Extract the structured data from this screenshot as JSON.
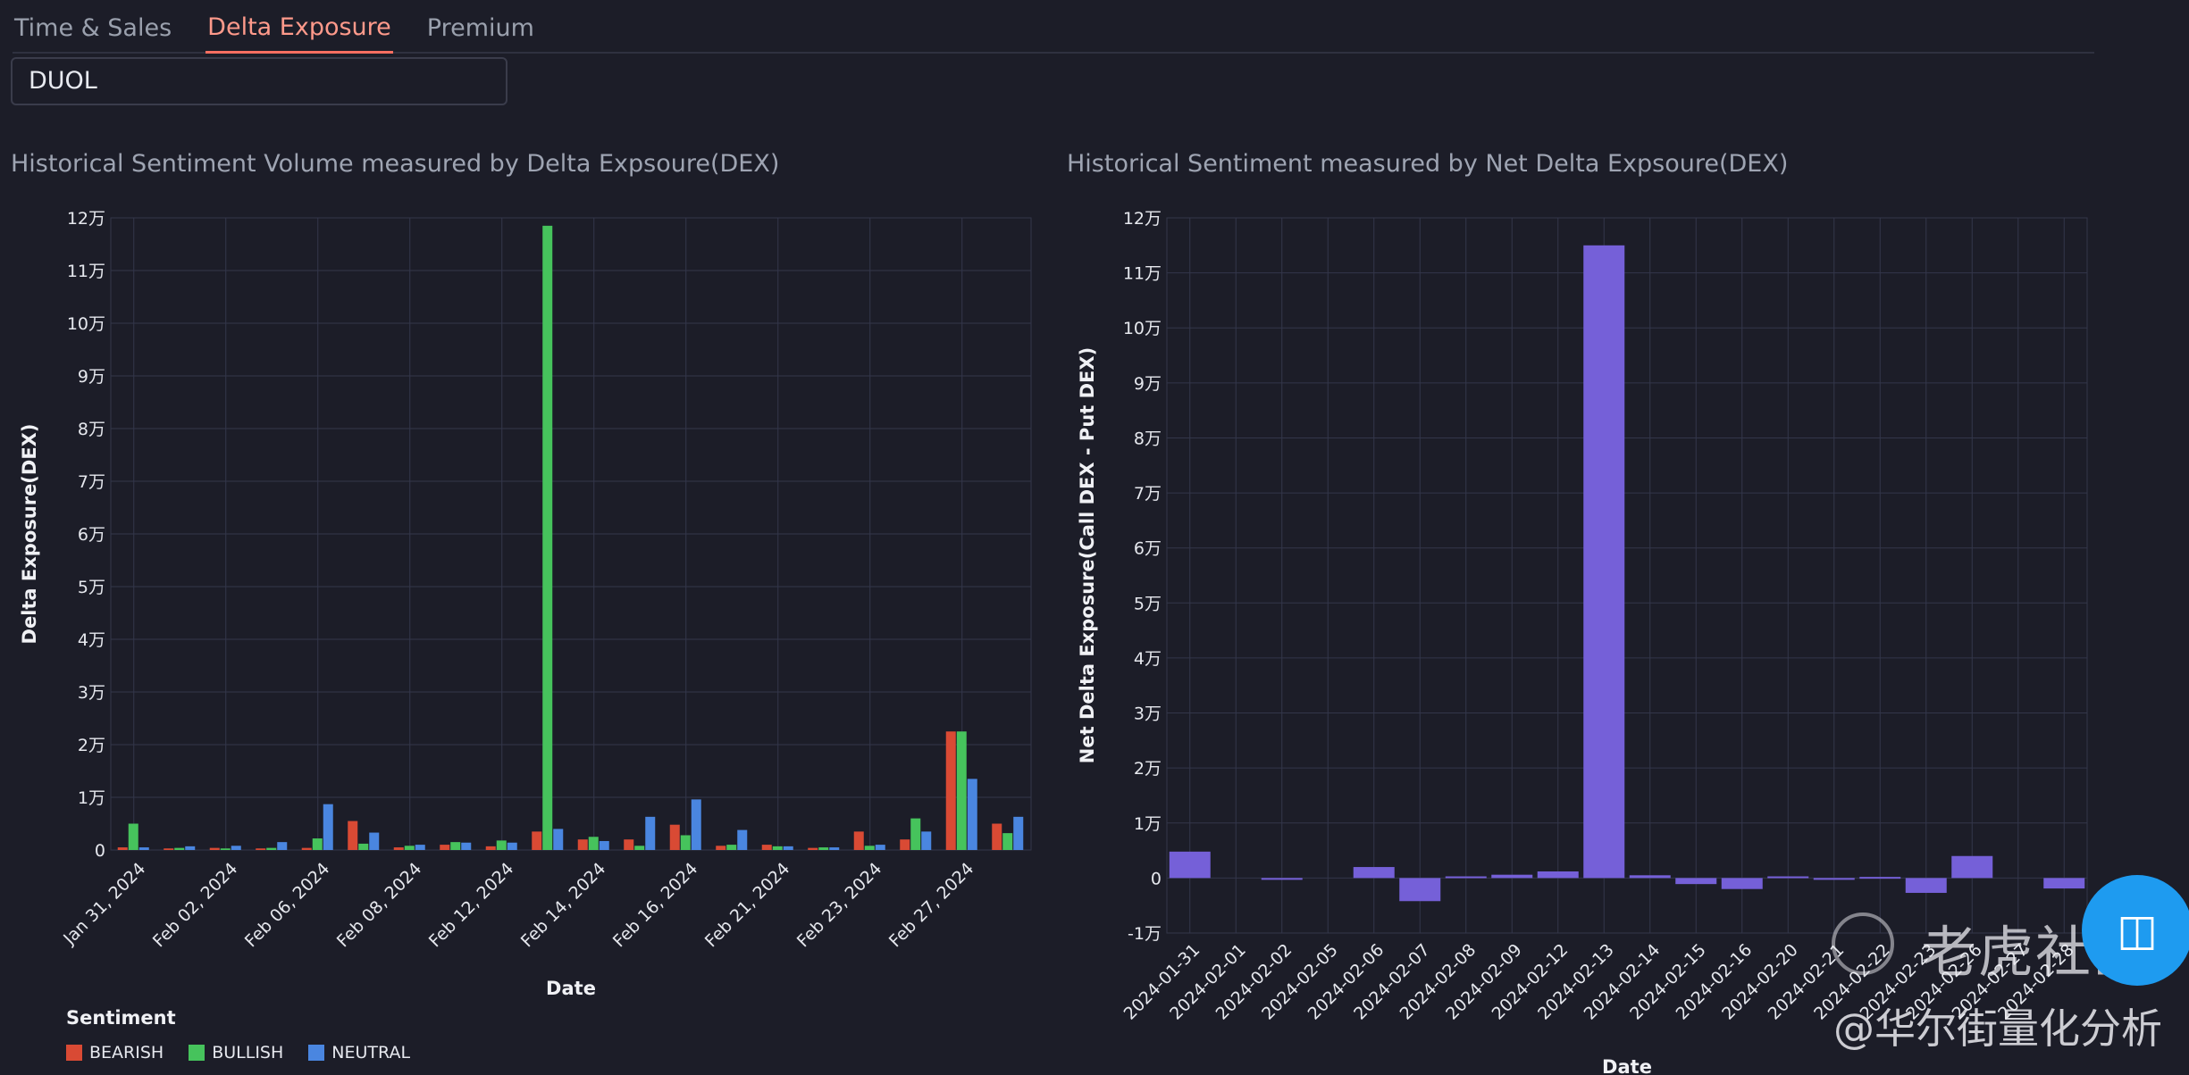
{
  "tabs": [
    {
      "label": "Time & Sales",
      "active": false
    },
    {
      "label": "Delta Exposure",
      "active": true
    },
    {
      "label": "Premium",
      "active": false
    }
  ],
  "ticker_input": {
    "value": "DUOL"
  },
  "colors": {
    "bearish": "#d94a34",
    "bullish": "#46c35c",
    "neutral": "#4a86e0",
    "net": "#7560d8",
    "accent": "#ff6f61"
  },
  "chart_data": [
    {
      "type": "bar",
      "title": "Historical Sentiment Volume measured by Delta Expsoure(DEX)",
      "xlabel": "Date",
      "ylabel": "Delta Exposure(DEX)",
      "ylim": [
        0,
        120000
      ],
      "yticks": [
        0,
        10000,
        20000,
        30000,
        40000,
        50000,
        60000,
        70000,
        80000,
        90000,
        100000,
        110000,
        120000
      ],
      "ytick_labels": [
        "0",
        "1万",
        "2万",
        "3万",
        "4万",
        "5万",
        "6万",
        "7万",
        "8万",
        "9万",
        "10万",
        "11万",
        "12万"
      ],
      "xtick_labels": [
        "Jan 31, 2024",
        "Feb 02, 2024",
        "Feb 06, 2024",
        "Feb 08, 2024",
        "Feb 12, 2024",
        "Feb 14, 2024",
        "Feb 16, 2024",
        "Feb 21, 2024",
        "Feb 23, 2024",
        "Feb 27, 2024"
      ],
      "categories": [
        "2024-01-31",
        "2024-02-01",
        "2024-02-02",
        "2024-02-05",
        "2024-02-06",
        "2024-02-07",
        "2024-02-08",
        "2024-02-09",
        "2024-02-12",
        "2024-02-13",
        "2024-02-14",
        "2024-02-15",
        "2024-02-16",
        "2024-02-20",
        "2024-02-21",
        "2024-02-22",
        "2024-02-23",
        "2024-02-26",
        "2024-02-27",
        "2024-02-28"
      ],
      "legend_title": "Sentiment",
      "legend_position": "bottom-left",
      "grid": true,
      "series": [
        {
          "name": "BEARISH",
          "values": [
            500,
            300,
            400,
            300,
            400,
            5500,
            500,
            1000,
            700,
            3500,
            2000,
            2000,
            4800,
            800,
            1000,
            400,
            3500,
            2000,
            22500,
            5000
          ]
        },
        {
          "name": "BULLISH",
          "values": [
            5000,
            400,
            300,
            400,
            2200,
            1200,
            800,
            1500,
            1800,
            118500,
            2500,
            800,
            2800,
            1000,
            700,
            500,
            800,
            6000,
            22500,
            3200
          ]
        },
        {
          "name": "NEUTRAL",
          "values": [
            500,
            700,
            800,
            1500,
            8700,
            3300,
            1000,
            1400,
            1400,
            4000,
            1700,
            6300,
            9600,
            3800,
            700,
            500,
            1000,
            3500,
            13500,
            6300
          ]
        }
      ]
    },
    {
      "type": "bar",
      "title": "Historical Sentiment measured by Net Delta Expsoure(DEX)",
      "xlabel": "Date",
      "ylabel": "Net Delta Exposure(Call DEX - Put DEX)",
      "ylim": [
        -10000,
        120000
      ],
      "yticks": [
        -10000,
        0,
        10000,
        20000,
        30000,
        40000,
        50000,
        60000,
        70000,
        80000,
        90000,
        100000,
        110000,
        120000
      ],
      "ytick_labels": [
        "-1万",
        "0",
        "1万",
        "2万",
        "3万",
        "4万",
        "5万",
        "6万",
        "7万",
        "8万",
        "9万",
        "10万",
        "11万",
        "12万"
      ],
      "categories": [
        "2024-01-31",
        "2024-02-01",
        "2024-02-02",
        "2024-02-05",
        "2024-02-06",
        "2024-02-07",
        "2024-02-08",
        "2024-02-09",
        "2024-02-12",
        "2024-02-13",
        "2024-02-14",
        "2024-02-15",
        "2024-02-16",
        "2024-02-20",
        "2024-02-21",
        "2024-02-22",
        "2024-02-23",
        "2024-02-26",
        "2024-02-27",
        "2024-02-28"
      ],
      "grid": true,
      "series": [
        {
          "name": "",
          "values": [
            4800,
            0,
            -300,
            0,
            2000,
            -4200,
            300,
            600,
            1200,
            115000,
            500,
            -1100,
            -2000,
            300,
            -300,
            200,
            -2700,
            4000,
            0,
            -1900
          ]
        }
      ]
    }
  ],
  "watermark": {
    "logo_text": "老虎社区",
    "sub_text": "@华尔街量化分析"
  }
}
